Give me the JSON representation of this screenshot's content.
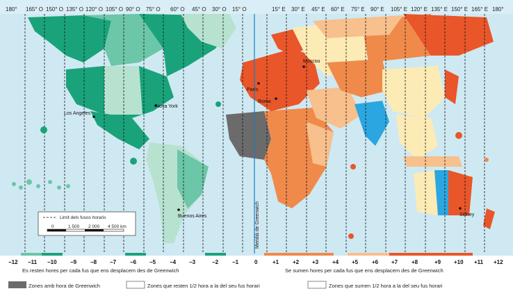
{
  "meridians_top": [
    "180°",
    "165° O",
    "150° O",
    "135° O",
    "120° O",
    "105° O",
    "90° O",
    "75° O",
    "60° O",
    "45° O",
    "30° O",
    "15° O",
    "15° E",
    "30° E",
    "45° E",
    "60° E",
    "75° E",
    "90° E",
    "105° E",
    "120° E",
    "135° E",
    "150° E",
    "165° E",
    "180°"
  ],
  "offsets": [
    "−12",
    "−11",
    "−10",
    "−9",
    "−8",
    "−7",
    "−6",
    "−5",
    "−4",
    "−3",
    "−2",
    "−1",
    "0",
    "+1",
    "+2",
    "+3",
    "+4",
    "+5",
    "+6",
    "+7",
    "+8",
    "+9",
    "+10",
    "+11",
    "+12"
  ],
  "cities": {
    "los_angeles": "Los Angeles",
    "nova_york": "Nova York",
    "paris": "París",
    "roma": "Roma",
    "moscou": "Moscou",
    "buenos_aires": "Buenos Aires",
    "sidney": "Sidney"
  },
  "greenwich_label": "Meridià de Greenwich",
  "caption_west": "Es resten hores per cada fus que ens desplacem des de Greenwich",
  "caption_east": "Se sumen hores per cada fus que ens desplacem des de Greenwich",
  "legend_box": {
    "limit_label": "Limit dels fusos horaris",
    "scale_ticks": [
      "0",
      "1 500",
      "2 000",
      "4 500 km"
    ]
  },
  "legend": {
    "gmt_zone": "Zones amb hora de Greenwich",
    "minus_half": "Zones que resten 1/2 hora a la del seu fus horari",
    "plus_half": "Zones que sumen 1/2 hora a la del seu fus horari"
  },
  "colors": {
    "ocean": "#cfe9f3",
    "green_dark": "#1aa37a",
    "green_mid": "#6cc6a8",
    "green_light": "#b7e2cf",
    "gray": "#6b6b6b",
    "orange_dark": "#e8562a",
    "orange_mid": "#f08a4b",
    "orange_light": "#f7c08c",
    "cream": "#fdebb5",
    "blue_zone": "#2ca6e0"
  }
}
